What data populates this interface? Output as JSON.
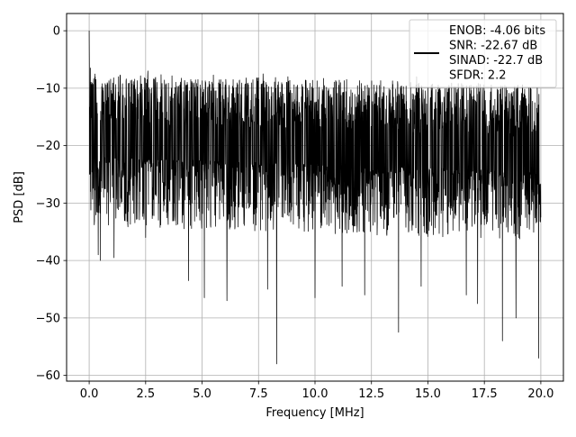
{
  "chart_data": {
    "type": "line",
    "title": "",
    "xlabel": "Frequency [MHz]",
    "ylabel": "PSD [dB]",
    "xlim": [
      -1.0,
      21.0
    ],
    "ylim": [
      -61.0,
      3.0
    ],
    "xticks": [
      0.0,
      2.5,
      5.0,
      7.5,
      10.0,
      12.5,
      15.0,
      17.5,
      20.0
    ],
    "xtick_labels": [
      "0.0",
      "2.5",
      "5.0",
      "7.5",
      "10.0",
      "12.5",
      "15.0",
      "17.5",
      "20.0"
    ],
    "yticks": [
      0,
      -10,
      -20,
      -30,
      -40,
      -50,
      -60
    ],
    "ytick_labels": [
      "0",
      "−10",
      "−20",
      "−30",
      "−40",
      "−50",
      "−60"
    ],
    "grid": true,
    "legend_position": "top-right",
    "series": [
      {
        "line_color": "#000000",
        "legend_lines": [
          "ENOB: -4.06 bits",
          "SNR: -22.67 dB",
          "SINAD: -22.7 dB",
          "SFDR: 2.2"
        ],
        "peaks": [
          {
            "x": 0.0,
            "y": 0.0
          },
          {
            "x": 0.05,
            "y": -6.5
          },
          {
            "x": 0.3,
            "y": -8.5
          },
          {
            "x": 1.1,
            "y": -7.0
          },
          {
            "x": 1.3,
            "y": -8.0
          },
          {
            "x": 2.6,
            "y": -7.0
          },
          {
            "x": 3.0,
            "y": -9.0
          },
          {
            "x": 4.5,
            "y": -8.5
          },
          {
            "x": 7.7,
            "y": -7.5
          },
          {
            "x": 8.8,
            "y": -8.0
          },
          {
            "x": 11.4,
            "y": -8.5
          },
          {
            "x": 14.5,
            "y": -8.0
          },
          {
            "x": 19.9,
            "y": -10.0
          }
        ],
        "troughs": [
          {
            "x": 0.4,
            "y": -39.0
          },
          {
            "x": 0.5,
            "y": -40.0
          },
          {
            "x": 1.1,
            "y": -39.5
          },
          {
            "x": 2.5,
            "y": -36.0
          },
          {
            "x": 4.4,
            "y": -43.5
          },
          {
            "x": 5.1,
            "y": -46.5
          },
          {
            "x": 6.1,
            "y": -47.0
          },
          {
            "x": 7.9,
            "y": -45.0
          },
          {
            "x": 8.3,
            "y": -58.0
          },
          {
            "x": 10.0,
            "y": -46.5
          },
          {
            "x": 11.2,
            "y": -44.5
          },
          {
            "x": 12.2,
            "y": -46.0
          },
          {
            "x": 13.7,
            "y": -52.5
          },
          {
            "x": 14.7,
            "y": -44.5
          },
          {
            "x": 16.7,
            "y": -46.0
          },
          {
            "x": 17.2,
            "y": -47.5
          },
          {
            "x": 18.3,
            "y": -54.0
          },
          {
            "x": 18.9,
            "y": -50.0
          },
          {
            "x": 19.9,
            "y": -57.0
          }
        ]
      }
    ]
  }
}
